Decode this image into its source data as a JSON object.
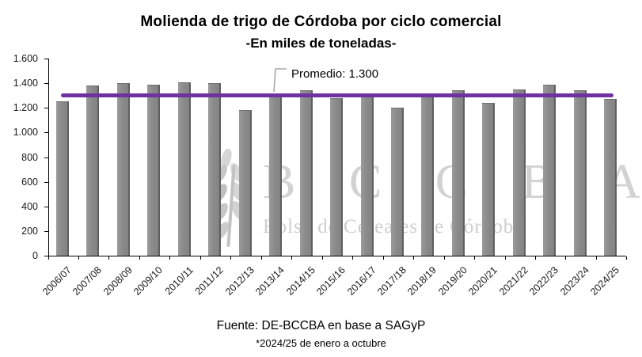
{
  "chart_data": {
    "type": "bar",
    "title": "Molienda de trigo de Córdoba por ciclo comercial",
    "subtitle": "-En miles de toneladas-",
    "categories": [
      "2006/07",
      "2007/08",
      "2008/09",
      "2009/10",
      "2010/11",
      "2011/12",
      "2012/13",
      "2013/14",
      "2014/15",
      "2015/16",
      "2016/17",
      "2017/18",
      "2018/19",
      "2019/20",
      "2020/21",
      "2021/22",
      "2022/23",
      "2023/24",
      "2024/25"
    ],
    "values": [
      1250,
      1380,
      1400,
      1390,
      1410,
      1400,
      1180,
      1310,
      1340,
      1280,
      1290,
      1200,
      1300,
      1340,
      1240,
      1350,
      1390,
      1340,
      1270
    ],
    "ylim": [
      0,
      1600
    ],
    "ytick_step": 200,
    "ytick_labels": [
      "0",
      "200",
      "400",
      "600",
      "800",
      "1.000",
      "1.200",
      "1.400",
      "1.600"
    ],
    "grid": false,
    "legend": "none",
    "bar_color": "#8a8a8a",
    "average_line": {
      "value": 1300,
      "label": "Promedio: 1.300",
      "color": "#7030A0"
    }
  },
  "watermark": {
    "acronym": "B C C B A",
    "name": "Bolsa de Cereales de Córdoba",
    "icon": "wheat-spike-icon"
  },
  "footer": {
    "source": "Fuente: DE-BCCBA en base a SAGyP",
    "note": "*2024/25 de enero a octubre"
  }
}
